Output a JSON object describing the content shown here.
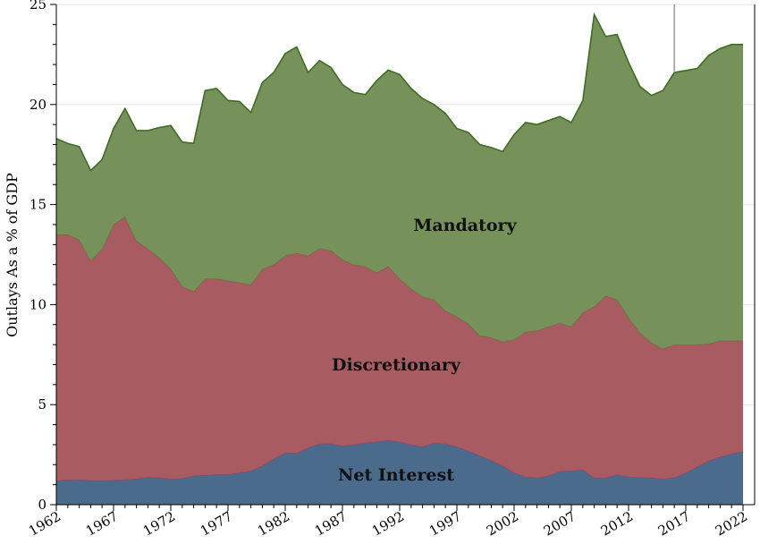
{
  "chart_data": {
    "type": "area",
    "stacked": true,
    "ylabel": "Outlays As a % of GDP",
    "xlabel": "",
    "ylim": [
      0,
      25
    ],
    "xlim": [
      1962,
      2022
    ],
    "x_ticks": [
      "1962",
      "1967",
      "1972",
      "1977",
      "1982",
      "1987",
      "1992",
      "1997",
      "2002",
      "2007",
      "2012",
      "2017",
      "2022"
    ],
    "y_ticks": [
      "0",
      "5",
      "10",
      "15",
      "20",
      "25"
    ],
    "x": [
      1962,
      1963,
      1964,
      1965,
      1966,
      1967,
      1968,
      1969,
      1970,
      1971,
      1972,
      1973,
      1974,
      1975,
      1976,
      1977,
      1978,
      1979,
      1980,
      1981,
      1982,
      1983,
      1984,
      1985,
      1986,
      1987,
      1988,
      1989,
      1990,
      1991,
      1992,
      1993,
      1994,
      1995,
      1996,
      1997,
      1998,
      1999,
      2000,
      2001,
      2002,
      2003,
      2004,
      2005,
      2006,
      2007,
      2008,
      2009,
      2010,
      2011,
      2012,
      2013,
      2014,
      2015,
      2016,
      2017,
      2018,
      2019,
      2020,
      2021,
      2022
    ],
    "series": [
      {
        "name": "Net Interest",
        "color": "#4a6b8c",
        "line_color": "#b23b4d",
        "values": [
          1.2,
          1.25,
          1.25,
          1.23,
          1.22,
          1.24,
          1.25,
          1.3,
          1.38,
          1.35,
          1.3,
          1.32,
          1.46,
          1.48,
          1.52,
          1.52,
          1.6,
          1.7,
          1.95,
          2.3,
          2.6,
          2.58,
          2.85,
          3.05,
          3.05,
          2.95,
          3.0,
          3.1,
          3.15,
          3.22,
          3.15,
          3.0,
          2.9,
          3.1,
          3.05,
          2.9,
          2.7,
          2.45,
          2.22,
          1.95,
          1.6,
          1.4,
          1.35,
          1.45,
          1.68,
          1.7,
          1.75,
          1.35,
          1.35,
          1.5,
          1.4,
          1.37,
          1.35,
          1.3,
          1.36,
          1.6,
          1.9,
          2.2,
          2.4,
          2.55,
          2.65
        ]
      },
      {
        "name": "Discretionary",
        "color": "#a85c62",
        "line_color": "#5b7a3a",
        "values": [
          12.3,
          12.25,
          12.0,
          10.97,
          11.58,
          12.76,
          13.15,
          11.9,
          11.42,
          11.0,
          10.5,
          9.6,
          9.2,
          9.82,
          9.78,
          9.68,
          9.5,
          9.3,
          9.83,
          9.7,
          9.85,
          10.0,
          9.6,
          9.75,
          9.65,
          9.3,
          9.0,
          8.8,
          8.45,
          8.7,
          8.15,
          7.8,
          7.5,
          7.15,
          6.65,
          6.5,
          6.35,
          6.0,
          6.13,
          6.2,
          6.65,
          7.25,
          7.35,
          7.45,
          7.4,
          7.2,
          7.85,
          8.55,
          9.1,
          8.75,
          7.95,
          7.23,
          6.75,
          6.5,
          6.64,
          6.4,
          6.1,
          5.85,
          5.8,
          5.65,
          5.55
        ]
      },
      {
        "name": "Mandatory",
        "color": "#76925a",
        "line_color": "#3f6b28",
        "values": [
          4.8,
          4.55,
          4.65,
          4.5,
          4.45,
          4.8,
          5.4,
          5.5,
          5.9,
          6.5,
          7.15,
          7.2,
          7.4,
          9.4,
          9.5,
          9.0,
          9.05,
          8.6,
          9.32,
          9.6,
          10.1,
          10.3,
          9.15,
          9.4,
          9.15,
          8.75,
          8.6,
          8.6,
          9.6,
          9.8,
          10.2,
          10.0,
          9.9,
          9.75,
          9.85,
          9.4,
          9.55,
          9.55,
          9.5,
          9.5,
          10.25,
          10.45,
          10.3,
          10.3,
          10.32,
          10.2,
          10.6,
          14.6,
          12.95,
          13.25,
          12.75,
          12.3,
          12.35,
          12.9,
          13.6,
          13.7,
          13.8,
          14.4,
          14.6,
          14.8,
          14.8
        ]
      }
    ],
    "labels": {
      "mandatory": "Mandatory",
      "discretionary": "Discretionary",
      "net_interest": "Net Interest"
    },
    "grid": true,
    "legend": "none"
  }
}
